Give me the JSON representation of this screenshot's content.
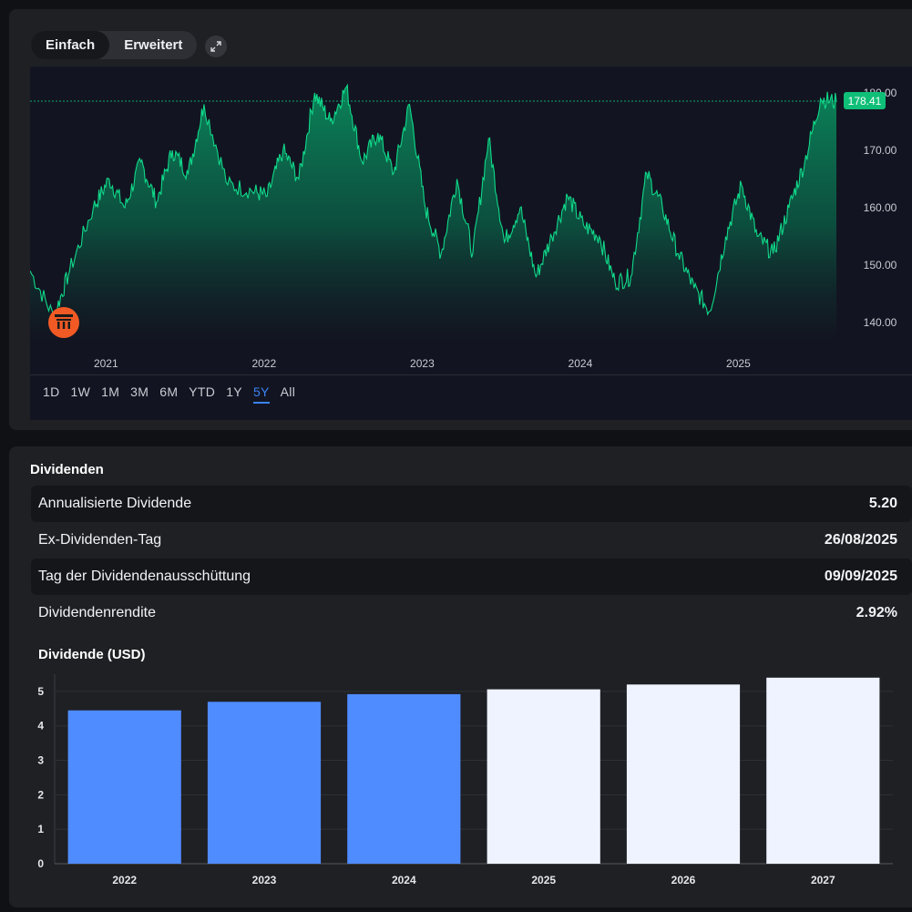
{
  "mode_toggle": {
    "simple_label": "Einfach",
    "advanced_label": "Erweitert",
    "active": "Einfach"
  },
  "price_chart": {
    "current_price_label": "178.41",
    "y_axis_ticks": [
      "180.00",
      "170.00",
      "160.00",
      "150.00",
      "140.00"
    ],
    "x_axis_ticks": [
      "2021",
      "2022",
      "2023",
      "2024",
      "2025"
    ],
    "line_color": "#10d98a",
    "badge_color": "#0fbf78"
  },
  "time_ranges": {
    "items": [
      "1D",
      "1W",
      "1M",
      "3M",
      "6M",
      "YTD",
      "1Y",
      "5Y",
      "All"
    ],
    "active": "5Y"
  },
  "dividends": {
    "title": "Dividenden",
    "rows": [
      {
        "label": "Annualisierte Dividende",
        "value": "5.20"
      },
      {
        "label": "Ex-Dividenden-Tag",
        "value": "26/08/2025"
      },
      {
        "label": "Tag der Dividendenausschüttung",
        "value": "09/09/2025"
      },
      {
        "label": "Dividendenrendite",
        "value": "2.92%"
      }
    ],
    "chart_title": "Dividende (USD)"
  },
  "chart_data": [
    {
      "type": "area",
      "x": [
        2020.6,
        2020.75,
        2020.85,
        2021.0,
        2021.1,
        2021.2,
        2021.3,
        2021.4,
        2021.5,
        2021.6,
        2021.7,
        2021.85,
        2022.0,
        2022.1,
        2022.2,
        2022.3,
        2022.4,
        2022.5,
        2022.6,
        2022.7,
        2022.8,
        2022.9,
        2023.0,
        2023.1,
        2023.2,
        2023.3,
        2023.4,
        2023.5,
        2023.6,
        2023.7,
        2023.8,
        2023.9,
        2024.0,
        2024.1,
        2024.2,
        2024.3,
        2024.4,
        2024.5,
        2024.6,
        2024.7,
        2024.8,
        2024.9,
        2025.0,
        2025.1,
        2025.2,
        2025.3,
        2025.4,
        2025.5,
        2025.6,
        2025.7
      ],
      "values": [
        149,
        141,
        149,
        160,
        165,
        160,
        168,
        161,
        170,
        166,
        178,
        164,
        163,
        162,
        170,
        165,
        180,
        175,
        181,
        168,
        173,
        166,
        178,
        160,
        152,
        165,
        152,
        172,
        154,
        160,
        148,
        155,
        162,
        157,
        155,
        147,
        148,
        166,
        160,
        152,
        146,
        142,
        155,
        164,
        155,
        152,
        160,
        168,
        179,
        178.41
      ],
      "ylim": [
        137,
        183
      ],
      "xlabel": "",
      "ylabel": ""
    },
    {
      "type": "bar",
      "categories": [
        "2022",
        "2023",
        "2024",
        "2025",
        "2026",
        "2027"
      ],
      "values": [
        4.45,
        4.7,
        4.92,
        5.06,
        5.2,
        5.4
      ],
      "colors": [
        "#4f8cff",
        "#4f8cff",
        "#4f8cff",
        "#eef3ff",
        "#eef3ff",
        "#eef3ff"
      ],
      "y_ticks": [
        0,
        1,
        2,
        3,
        4,
        5
      ],
      "ylim": [
        0,
        5.5
      ],
      "title": "Dividende (USD)"
    }
  ]
}
